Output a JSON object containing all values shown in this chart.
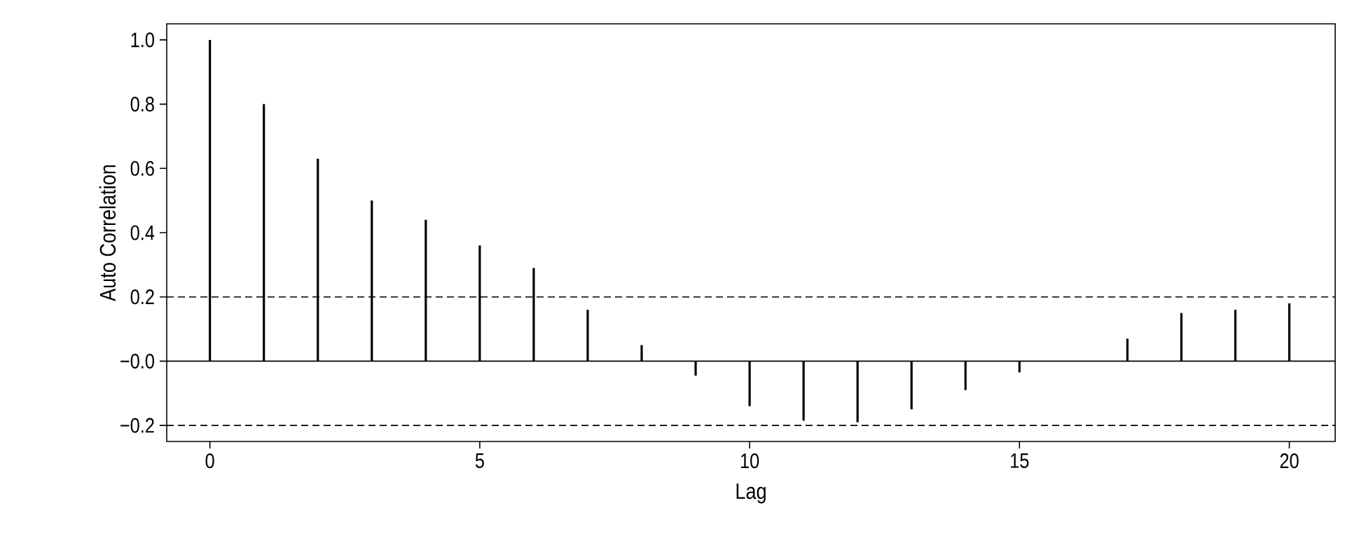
{
  "chart_data": {
    "type": "bar",
    "xlabel": "Lag",
    "ylabel": "Auto Correlation",
    "x": [
      0,
      1,
      2,
      3,
      4,
      5,
      6,
      7,
      8,
      9,
      10,
      11,
      12,
      13,
      14,
      15,
      16,
      17,
      18,
      19,
      20
    ],
    "values": [
      1.0,
      0.8,
      0.63,
      0.5,
      0.44,
      0.36,
      0.29,
      0.16,
      0.05,
      -0.045,
      -0.14,
      -0.185,
      -0.19,
      -0.15,
      -0.09,
      -0.035,
      0.0,
      0.07,
      0.15,
      0.16,
      0.18
    ],
    "color": "#000000",
    "xlim": [
      -0.8,
      20.85
    ],
    "xticks": [
      0,
      5,
      10,
      15,
      20
    ],
    "ylim": [
      -0.25,
      1.05
    ],
    "yticks": [
      {
        "value": -0.2,
        "label": "−0.2"
      },
      {
        "value": 0,
        "label": "−0.0"
      },
      {
        "value": 0.2,
        "label": "0.2"
      },
      {
        "value": 0.4,
        "label": "0.4"
      },
      {
        "value": 0.6,
        "label": "0.6"
      },
      {
        "value": 0.8,
        "label": "0.8"
      },
      {
        "value": 1.0,
        "label": "1.0"
      }
    ],
    "ref_lines": [
      {
        "axis": "y",
        "value": 0.2,
        "line_style": "dashed"
      },
      {
        "axis": "y",
        "value": -0.2,
        "line_style": "dashed"
      },
      {
        "axis": "y",
        "value": 0,
        "line_style": "solid"
      }
    ]
  }
}
